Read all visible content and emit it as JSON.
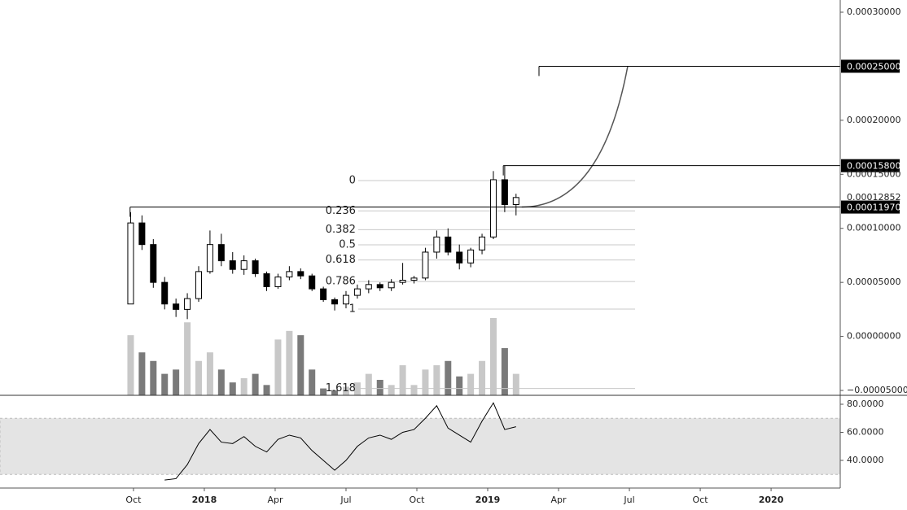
{
  "chart_data": {
    "type": "candlestick",
    "x": [
      2017.74,
      2017.78,
      2017.82,
      2017.86,
      2017.9,
      2017.94,
      2017.98,
      2018.02,
      2018.06,
      2018.1,
      2018.14,
      2018.18,
      2018.22,
      2018.26,
      2018.3,
      2018.34,
      2018.38,
      2018.42,
      2018.46,
      2018.5,
      2018.54,
      2018.58,
      2018.62,
      2018.66,
      2018.7,
      2018.74,
      2018.78,
      2018.82,
      2018.86,
      2018.9,
      2018.94,
      2018.98,
      2019.02,
      2019.06,
      2019.1
    ],
    "open": [
      3e-05,
      0.000105,
      8.5e-05,
      5e-05,
      3e-05,
      2.5e-05,
      3.5e-05,
      6e-05,
      8.5e-05,
      7e-05,
      6.2e-05,
      7e-05,
      5.8e-05,
      4.6e-05,
      5.5e-05,
      6e-05,
      5.6e-05,
      4.4e-05,
      3.4e-05,
      3e-05,
      3.8e-05,
      4.4e-05,
      4.8e-05,
      4.5e-05,
      5e-05,
      5.2e-05,
      5.4e-05,
      7.8e-05,
      9.2e-05,
      7.8e-05,
      6.8e-05,
      8e-05,
      9.2e-05,
      0.000145,
      0.000122
    ],
    "high": [
      0.000115,
      0.000112,
      9e-05,
      5.5e-05,
      3.5e-05,
      4e-05,
      6.5e-05,
      9.8e-05,
      9.5e-05,
      7.8e-05,
      7.5e-05,
      7.2e-05,
      6e-05,
      5.8e-05,
      6.5e-05,
      6.3e-05,
      5.8e-05,
      4.6e-05,
      3.6e-05,
      4.2e-05,
      4.8e-05,
      5.2e-05,
      5e-05,
      5.3e-05,
      6.8e-05,
      5.6e-05,
      8.2e-05,
      9.8e-05,
      0.0001,
      8.5e-05,
      8.2e-05,
      9.5e-05,
      0.000153,
      0.000158,
      0.000132
    ],
    "low": [
      3e-05,
      8e-05,
      4.5e-05,
      2.5e-05,
      1.8e-05,
      1.6e-05,
      3.2e-05,
      5.8e-05,
      6.5e-05,
      5.8e-05,
      5.7e-05,
      5.5e-05,
      4.2e-05,
      4.4e-05,
      5.2e-05,
      5.3e-05,
      4.2e-05,
      3.2e-05,
      2.4e-05,
      2.6e-05,
      3.5e-05,
      4e-05,
      4.2e-05,
      4.2e-05,
      4.8e-05,
      4.9e-05,
      5.2e-05,
      7.2e-05,
      7.5e-05,
      6.2e-05,
      6.4e-05,
      7.6e-05,
      9e-05,
      0.000115,
      0.000112
    ],
    "close": [
      0.000105,
      8.5e-05,
      5e-05,
      3e-05,
      2.5e-05,
      3.5e-05,
      6e-05,
      8.5e-05,
      7e-05,
      6.2e-05,
      7e-05,
      5.8e-05,
      4.6e-05,
      5.5e-05,
      6e-05,
      5.6e-05,
      4.4e-05,
      3.4e-05,
      3e-05,
      3.8e-05,
      4.4e-05,
      4.8e-05,
      4.5e-05,
      5e-05,
      5.2e-05,
      5.4e-05,
      7.8e-05,
      9.2e-05,
      7.8e-05,
      6.8e-05,
      8e-05,
      9.2e-05,
      0.000145,
      0.000122,
      0.00012852
    ],
    "volume": [
      70,
      50,
      40,
      25,
      30,
      85,
      40,
      50,
      30,
      15,
      20,
      25,
      12,
      65,
      75,
      70,
      30,
      8,
      6,
      10,
      15,
      25,
      18,
      12,
      35,
      12,
      30,
      35,
      40,
      22,
      25,
      40,
      90,
      55,
      25
    ],
    "up_color": "#ffffff",
    "down_color": "#000000",
    "volume_up_color": "#c8c8c8",
    "volume_down_color": "#7a7a7a",
    "xlim": [
      2017.279,
      2020.244
    ],
    "xticks": [
      {
        "value": 2017.75,
        "label": "Oct"
      },
      2018,
      {
        "value": 2018.25,
        "label": "Apr"
      },
      {
        "value": 2018.5,
        "label": "Jul"
      },
      {
        "value": 2018.75,
        "label": "Oct"
      },
      2019,
      {
        "value": 2019.25,
        "label": "Apr"
      },
      {
        "value": 2019.5,
        "label": "Jul"
      },
      {
        "value": 2019.75,
        "label": "Oct"
      },
      2020
    ],
    "ylim": [
      -5.45e-05,
      0.0003113
    ],
    "yticks": [
      {
        "value": 0.0003,
        "label": "0.00030000"
      },
      {
        "value": 0.0002,
        "label": "0.00020000"
      },
      {
        "value": 0.00015,
        "label": "0.00015000"
      },
      {
        "value": 0.0001,
        "label": "0.00010000"
      },
      {
        "value": 5e-05,
        "label": "0.00005000"
      },
      {
        "value": 0,
        "label": "0.00000000"
      },
      {
        "value": -5e-05,
        "label": "−0.00005000"
      }
    ],
    "last_price": {
      "value": 0.00012852,
      "label": "0.00012852"
    },
    "hlines": [
      {
        "value": 0.00025,
        "label": "0.00025000",
        "x_start": 2019.181
      },
      {
        "value": 0.000158,
        "label": "0.00015800",
        "x_start": 2019.055
      },
      {
        "value": 0.0001197,
        "label": "0.00011970",
        "x_start": 2017.738
      }
    ],
    "curve": {
      "x": [
        2019.12,
        2019.494
      ],
      "y": [
        0.0001197,
        0.00025
      ]
    },
    "fib": {
      "high": 0.0001442,
      "low": 2.53e-05,
      "levels": [
        0,
        0.236,
        0.382,
        0.5,
        0.618,
        0.786,
        1,
        1.618
      ],
      "x_range": [
        2018.543,
        2019.52
      ]
    },
    "rsi": {
      "values": [
        null,
        null,
        null,
        26,
        27,
        37,
        52,
        62,
        53,
        52,
        57,
        50,
        46,
        55,
        58,
        56,
        47,
        40,
        33,
        40,
        50,
        56,
        58,
        55,
        60,
        62,
        70,
        79,
        63,
        58,
        53,
        68,
        81,
        62,
        64
      ],
      "ylim": [
        20.3,
        85.8
      ],
      "yticks": [
        {
          "value": 40,
          "label": "40.0000"
        },
        {
          "value": 60,
          "label": "60.0000"
        },
        {
          "value": 80,
          "label": "80.0000"
        }
      ],
      "band": [
        30,
        70
      ],
      "color": "#000000"
    }
  }
}
